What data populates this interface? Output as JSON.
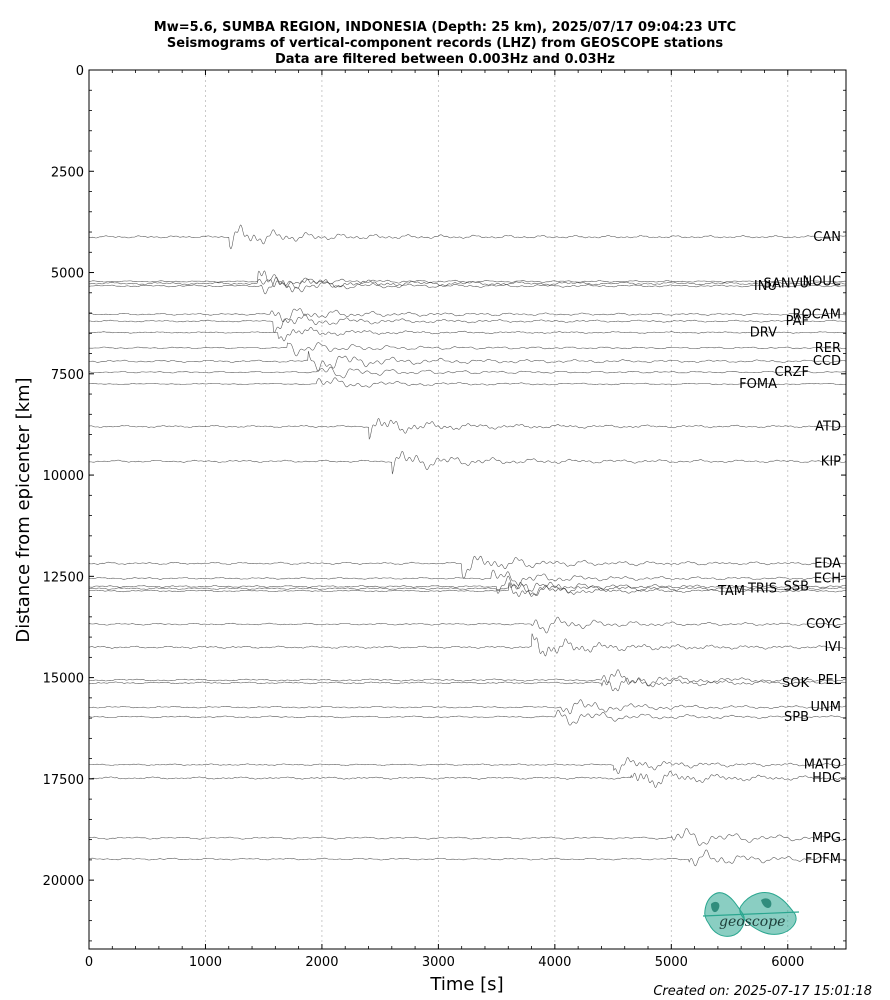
{
  "chart_data": {
    "type": "line",
    "title_lines": [
      "Mw=5.6, SUMBA REGION, INDONESIA (Depth: 25 km), 2025/07/17 09:04:23 UTC",
      "Seismograms of vertical-component records (LHZ) from GEOSCOPE stations",
      "Data are filtered between 0.003Hz and 0.03Hz"
    ],
    "xlabel": "Time [s]",
    "ylabel": "Distance from epicenter [km]",
    "xlim": [
      0,
      6500
    ],
    "ylim": [
      0,
      21700
    ],
    "y_inverted": true,
    "x_ticks": [
      0,
      1000,
      2000,
      3000,
      4000,
      5000,
      6000
    ],
    "y_ticks": [
      0,
      2500,
      5000,
      7500,
      10000,
      12500,
      15000,
      17500,
      20000
    ],
    "grid": "vertical dotted at x ticks",
    "stations": [
      {
        "name": "CAN",
        "distance": 4120,
        "arrival": 1200,
        "amp": 1.0
      },
      {
        "name": "NOUC",
        "distance": 5220,
        "arrival": 1450,
        "amp": 0.6
      },
      {
        "name": "SANVU",
        "distance": 5270,
        "arrival": 1450,
        "amp": 1.0
      },
      {
        "name": "INU",
        "distance": 5330,
        "arrival": 1470,
        "amp": 0.8
      },
      {
        "name": "ROCAM",
        "distance": 6030,
        "arrival": 1550,
        "amp": 0.8
      },
      {
        "name": "PAF",
        "distance": 6200,
        "arrival": 1580,
        "amp": 0.8
      },
      {
        "name": "DRV",
        "distance": 6480,
        "arrival": 1620,
        "amp": 0.6
      },
      {
        "name": "RER",
        "distance": 6860,
        "arrival": 1700,
        "amp": 0.7
      },
      {
        "name": "CCD",
        "distance": 7190,
        "arrival": 1880,
        "amp": 1.0
      },
      {
        "name": "CRZF",
        "distance": 7460,
        "arrival": 1950,
        "amp": 0.7
      },
      {
        "name": "FOMA",
        "distance": 7750,
        "arrival": 1950,
        "amp": 0.6
      },
      {
        "name": "ATD",
        "distance": 8800,
        "arrival": 2400,
        "amp": 0.9
      },
      {
        "name": "KIP",
        "distance": 9660,
        "arrival": 2600,
        "amp": 1.0
      },
      {
        "name": "EDA",
        "distance": 12180,
        "arrival": 3200,
        "amp": 1.0
      },
      {
        "name": "ECH",
        "distance": 12550,
        "arrival": 3450,
        "amp": 0.8
      },
      {
        "name": "SSB",
        "distance": 12750,
        "arrival": 3500,
        "amp": 0.8
      },
      {
        "name": "TRIS",
        "distance": 12800,
        "arrival": 3600,
        "amp": 0.8
      },
      {
        "name": "TAM",
        "distance": 12860,
        "arrival": 3600,
        "amp": 0.7
      },
      {
        "name": "COYC",
        "distance": 13680,
        "arrival": 3800,
        "amp": 0.8
      },
      {
        "name": "IVI",
        "distance": 14250,
        "arrival": 3800,
        "amp": 1.0
      },
      {
        "name": "PEL",
        "distance": 15060,
        "arrival": 4400,
        "amp": 0.9
      },
      {
        "name": "SOK",
        "distance": 15130,
        "arrival": 4400,
        "amp": 0.8
      },
      {
        "name": "UNM",
        "distance": 15730,
        "arrival": 4050,
        "amp": 0.8
      },
      {
        "name": "SPB",
        "distance": 15970,
        "arrival": 4000,
        "amp": 0.8
      },
      {
        "name": "MATO",
        "distance": 17150,
        "arrival": 4500,
        "amp": 0.7
      },
      {
        "name": "HDC",
        "distance": 17480,
        "arrival": 4650,
        "amp": 1.0
      },
      {
        "name": "MPG",
        "distance": 18960,
        "arrival": 5000,
        "amp": 1.0
      },
      {
        "name": "FDFM",
        "distance": 19480,
        "arrival": 5150,
        "amp": 0.8
      }
    ]
  },
  "credit": "Created on: 2025-07-17 15:01:18",
  "logo": {
    "text": "geoscope",
    "color": "#2aa68f"
  }
}
